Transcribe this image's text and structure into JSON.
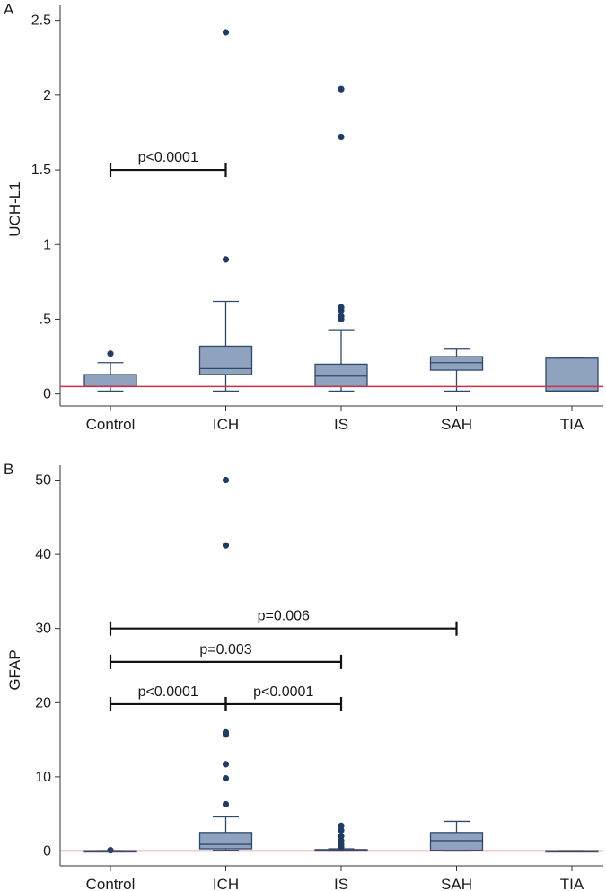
{
  "chart_data": [
    {
      "type": "box",
      "panel": "A",
      "ylabel": "UCH-L1",
      "categories": [
        "Control",
        "ICH",
        "IS",
        "SAH",
        "TIA"
      ],
      "ylim": [
        -0.08,
        2.6
      ],
      "yticks": [
        0,
        0.5,
        1,
        1.5,
        2,
        2.5
      ],
      "ytick_labels": [
        "0",
        ".5",
        "1",
        "1.5",
        "2",
        "2.5"
      ],
      "reference_line": 0.05,
      "reference_line_color": "#c8324a",
      "box_color": "#8fa3be",
      "outlier_color": "#1f3d63",
      "boxes": [
        {
          "name": "Control",
          "whisker_low": 0.02,
          "q1": 0.05,
          "median": 0.05,
          "q3": 0.13,
          "whisker_high": 0.21,
          "outliers": [
            0.27
          ]
        },
        {
          "name": "ICH",
          "whisker_low": 0.02,
          "q1": 0.13,
          "median": 0.17,
          "q3": 0.32,
          "whisker_high": 0.62,
          "outliers": [
            0.9,
            2.42
          ]
        },
        {
          "name": "IS",
          "whisker_low": 0.02,
          "q1": 0.05,
          "median": 0.12,
          "q3": 0.2,
          "whisker_high": 0.43,
          "outliers": [
            0.5,
            0.52,
            0.56,
            0.58,
            1.72,
            2.04
          ]
        },
        {
          "name": "SAH",
          "whisker_low": 0.02,
          "q1": 0.16,
          "median": 0.21,
          "q3": 0.25,
          "whisker_high": 0.3,
          "outliers": []
        },
        {
          "name": "TIA",
          "whisker_low": 0.02,
          "q1": 0.02,
          "median": 0.02,
          "q3": 0.24,
          "whisker_high": 0.24,
          "outliers": []
        }
      ],
      "significance": [
        {
          "from": "Control",
          "to": "ICH",
          "y": 1.5,
          "label": "p<0.0001"
        }
      ]
    },
    {
      "type": "box",
      "panel": "B",
      "ylabel": "GFAP",
      "categories": [
        "Control",
        "ICH",
        "IS",
        "SAH",
        "TIA"
      ],
      "ylim": [
        -2,
        52
      ],
      "yticks": [
        0,
        10,
        20,
        30,
        40,
        50
      ],
      "ytick_labels": [
        "0",
        "10",
        "20",
        "30",
        "40",
        "50"
      ],
      "reference_line": 0,
      "reference_line_color": "#c8324a",
      "box_color": "#8fa3be",
      "outlier_color": "#1f3d63",
      "boxes": [
        {
          "name": "Control",
          "whisker_low": 0,
          "q1": 0,
          "median": 0,
          "q3": 0.05,
          "whisker_high": 0.05,
          "outliers": [
            0.1
          ]
        },
        {
          "name": "ICH",
          "whisker_low": 0.1,
          "q1": 0.3,
          "median": 0.9,
          "q3": 2.5,
          "whisker_high": 4.6,
          "outliers": [
            6.3,
            9.8,
            11.7,
            15.7,
            16.0,
            41.2,
            50.0
          ]
        },
        {
          "name": "IS",
          "whisker_low": 0,
          "q1": 0,
          "median": 0.1,
          "q3": 0.2,
          "whisker_high": 0.3,
          "outliers": [
            0.5,
            0.9,
            1.4,
            2.0,
            2.8,
            3.4
          ]
        },
        {
          "name": "SAH",
          "whisker_low": 0,
          "q1": 0.1,
          "median": 1.4,
          "q3": 2.5,
          "whisker_high": 4.0,
          "outliers": []
        },
        {
          "name": "TIA",
          "whisker_low": 0,
          "q1": 0,
          "median": 0,
          "q3": 0.05,
          "whisker_high": 0.05,
          "outliers": []
        }
      ],
      "significance": [
        {
          "from": "Control",
          "to": "SAH",
          "y": 30,
          "label": "p=0.006"
        },
        {
          "from": "Control",
          "to": "IS",
          "y": 25.5,
          "label": "p=0.003"
        },
        {
          "from": "Control",
          "to": "ICH",
          "y": 19.8,
          "label": "p<0.0001"
        },
        {
          "from": "ICH",
          "to": "IS",
          "y": 19.8,
          "label": "p<0.0001"
        }
      ]
    }
  ]
}
